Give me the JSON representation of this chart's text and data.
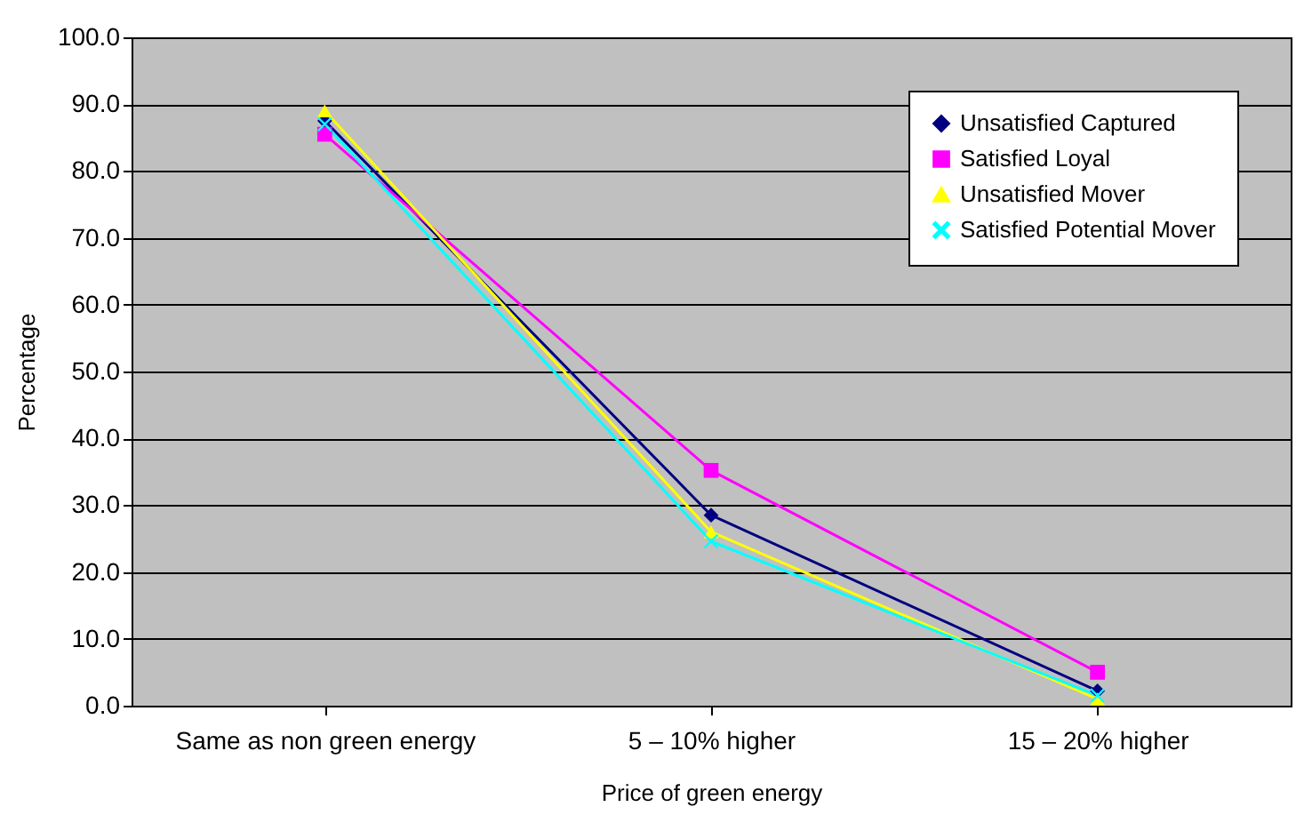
{
  "chart_data": {
    "type": "line",
    "xlabel": "Price of green energy",
    "ylabel": "Percentage",
    "categories": [
      "Same as non green energy",
      "5 – 10% higher",
      "15 – 20% higher"
    ],
    "ylim": [
      0,
      100
    ],
    "yticks": [
      {
        "value": 0,
        "label": "0.0"
      },
      {
        "value": 10,
        "label": "10.0"
      },
      {
        "value": 20,
        "label": "20.0"
      },
      {
        "value": 30,
        "label": "30.0"
      },
      {
        "value": 40,
        "label": "40.0"
      },
      {
        "value": 50,
        "label": "50.0"
      },
      {
        "value": 60,
        "label": "60.0"
      },
      {
        "value": 70,
        "label": "70.0"
      },
      {
        "value": 80,
        "label": "80.0"
      },
      {
        "value": 90,
        "label": "90.0"
      },
      {
        "value": 100,
        "label": "100.0"
      }
    ],
    "grid": "y",
    "legend": "top right",
    "series": [
      {
        "name": "Unsatisfied Captured",
        "color": "#000080",
        "marker": "diamond",
        "values": [
          87.5,
          28.5,
          2.2
        ]
      },
      {
        "name": "Satisfied Loyal",
        "color": "#ff00ff",
        "marker": "square",
        "values": [
          85.5,
          35.2,
          5.0
        ]
      },
      {
        "name": "Unsatisfied Mover",
        "color": "#ffff00",
        "marker": "triangle",
        "values": [
          89.0,
          26.0,
          1.0
        ]
      },
      {
        "name": "Satisfied Potential Mover",
        "color": "#00ffff",
        "marker": "cross",
        "values": [
          87.0,
          24.6,
          1.5
        ]
      }
    ]
  }
}
